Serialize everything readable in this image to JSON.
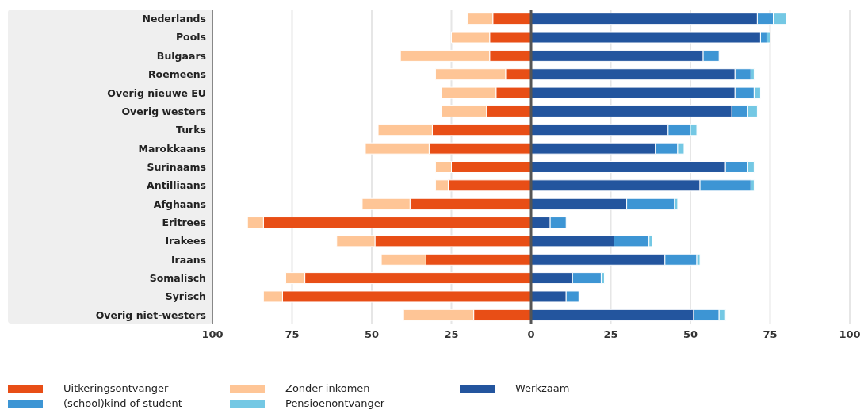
{
  "chart_data": {
    "type": "bar",
    "orientation": "horizontal",
    "stacked": true,
    "categories": [
      "Nederlands",
      "Pools",
      "Bulgaars",
      "Roemeens",
      "Overig nieuwe EU",
      "Overig westers",
      "Turks",
      "Marokkaans",
      "Surinaams",
      "Antilliaans",
      "Afghaans",
      "Eritrees",
      "Irakees",
      "Iraans",
      "Somalisch",
      "Syrisch",
      "Overig niet-westers"
    ],
    "series": [
      {
        "name": "Uitkeringsontvanger",
        "color": "#e84e16",
        "values": [
          -12,
          -13,
          -13,
          -8,
          -11,
          -14,
          -31,
          -32,
          -25,
          -26,
          -38,
          -84,
          -49,
          -33,
          -71,
          -78,
          -18
        ]
      },
      {
        "name": "Zonder inkomen",
        "color": "#fec596",
        "values": [
          -8,
          -12,
          -28,
          -22,
          -17,
          -14,
          -17,
          -20,
          -5,
          -4,
          -15,
          -5,
          -12,
          -14,
          -6,
          -6,
          -22
        ]
      },
      {
        "name": "Werkzaam",
        "color": "#23559e",
        "values": [
          71,
          72,
          54,
          64,
          64,
          63,
          43,
          39,
          61,
          53,
          30,
          6,
          26,
          42,
          13,
          11,
          51
        ]
      },
      {
        "name": "(school)kind of student",
        "color": "#3d95d4",
        "values": [
          5,
          2,
          5,
          5,
          6,
          5,
          7,
          7,
          7,
          16,
          15,
          5,
          11,
          10,
          9,
          4,
          8
        ]
      },
      {
        "name": "Pensioenontvanger",
        "color": "#74c8e4",
        "values": [
          4,
          1,
          null,
          1,
          2,
          3,
          2,
          2,
          2,
          1,
          1,
          null,
          1,
          1,
          1,
          null,
          2
        ]
      }
    ],
    "xlim": [
      -100,
      100
    ],
    "xticks": [
      {
        "value": -100,
        "label": "100"
      },
      {
        "value": -75,
        "label": "75"
      },
      {
        "value": -50,
        "label": "50"
      },
      {
        "value": -25,
        "label": "25"
      },
      0,
      25,
      50,
      75,
      100
    ],
    "ref_lines": [
      {
        "axis": "x",
        "value": 0,
        "color": "#555555"
      }
    ],
    "grid": "x",
    "legend": "bottom left"
  }
}
